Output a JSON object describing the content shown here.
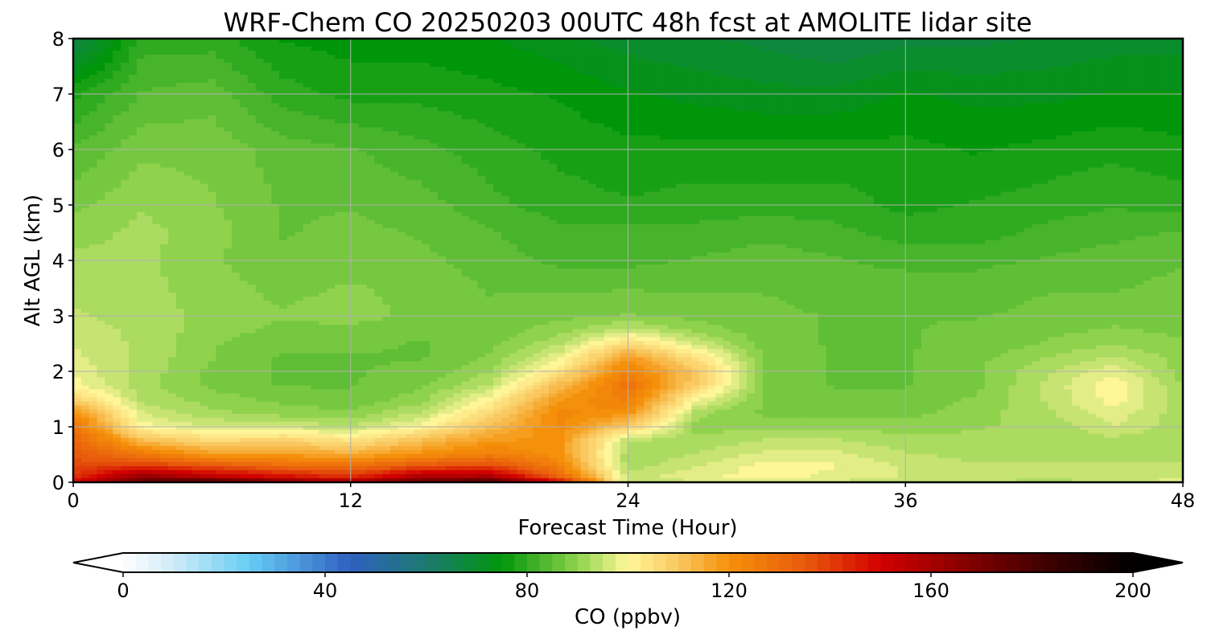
{
  "chart_data": {
    "type": "heatmap",
    "title": "WRF-Chem CO  20250203 00UTC 48h fcst at AMOLITE lidar site",
    "xlabel": "Forecast Time (Hour)",
    "ylabel": "Alt AGL (km)",
    "xlim": [
      0,
      48
    ],
    "ylim": [
      0,
      8
    ],
    "xticks": [
      "0",
      "12",
      "24",
      "36",
      "48"
    ],
    "yticks": [
      "0",
      "1",
      "2",
      "3",
      "4",
      "5",
      "6",
      "7",
      "8"
    ],
    "grid": true,
    "colorbar": {
      "label": "CO  (ppbv)",
      "range": [
        0,
        200
      ],
      "extend": "both",
      "ticks": [
        "0",
        "40",
        "80",
        "120",
        "160",
        "200"
      ],
      "stops": [
        {
          "value": 0,
          "color": "#ffffff"
        },
        {
          "value": 10,
          "color": "#cfeaf8"
        },
        {
          "value": 25,
          "color": "#66ccf5"
        },
        {
          "value": 45,
          "color": "#3060c0"
        },
        {
          "value": 60,
          "color": "#1c7a70"
        },
        {
          "value": 75,
          "color": "#00960a"
        },
        {
          "value": 90,
          "color": "#8fd24c"
        },
        {
          "value": 100,
          "color": "#fff69a"
        },
        {
          "value": 110,
          "color": "#f9c860"
        },
        {
          "value": 120,
          "color": "#f5900a"
        },
        {
          "value": 135,
          "color": "#e85a0c"
        },
        {
          "value": 150,
          "color": "#d20000"
        },
        {
          "value": 165,
          "color": "#8e0000"
        },
        {
          "value": 180,
          "color": "#4a0000"
        },
        {
          "value": 200,
          "color": "#000000"
        }
      ]
    },
    "hours": [
      0,
      3,
      6,
      9,
      12,
      15,
      18,
      21,
      24,
      27,
      30,
      33,
      36,
      39,
      42,
      45,
      48
    ],
    "altitudes_km": [
      0,
      0.1,
      0.3,
      0.5,
      0.75,
      1,
      1.25,
      1.5,
      1.75,
      2,
      2.25,
      2.5,
      2.75,
      3,
      3.5,
      4,
      4.5,
      5,
      6,
      7,
      8
    ],
    "values": [
      [
        150,
        175,
        182,
        168,
        160,
        175,
        180,
        150,
        94,
        96,
        97,
        96,
        94,
        94,
        93,
        94,
        98
      ],
      [
        140,
        165,
        155,
        148,
        142,
        158,
        160,
        132,
        95,
        98,
        100,
        98,
        96,
        95,
        94,
        95,
        96
      ],
      [
        138,
        140,
        135,
        130,
        128,
        135,
        138,
        124,
        92,
        96,
        100,
        99,
        96,
        94,
        94,
        94,
        94
      ],
      [
        135,
        126,
        118,
        118,
        115,
        120,
        125,
        120,
        92,
        94,
        97,
        97,
        94,
        93,
        93,
        93,
        93
      ],
      [
        132,
        112,
        106,
        108,
        104,
        112,
        118,
        120,
        94,
        92,
        94,
        94,
        92,
        92,
        92,
        93,
        92
      ],
      [
        128,
        100,
        96,
        96,
        94,
        100,
        112,
        122,
        108,
        90,
        91,
        91,
        90,
        91,
        92,
        96,
        92
      ],
      [
        120,
        96,
        92,
        90,
        89,
        94,
        106,
        122,
        120,
        92,
        88,
        88,
        88,
        90,
        93,
        98,
        92
      ],
      [
        108,
        93,
        90,
        88,
        87,
        90,
        100,
        118,
        125,
        100,
        88,
        87,
        87,
        89,
        94,
        100,
        92
      ],
      [
        100,
        92,
        88,
        86,
        86,
        88,
        94,
        112,
        128,
        108,
        88,
        86,
        86,
        88,
        94,
        101,
        91
      ],
      [
        98,
        93,
        88,
        86,
        86,
        87,
        91,
        104,
        124,
        110,
        88,
        86,
        86,
        88,
        93,
        98,
        90
      ],
      [
        97,
        93,
        89,
        86,
        86,
        86,
        89,
        98,
        118,
        104,
        88,
        86,
        86,
        88,
        91,
        94,
        90
      ],
      [
        96,
        93,
        89,
        87,
        87,
        86,
        88,
        93,
        106,
        96,
        87,
        86,
        86,
        87,
        89,
        91,
        89
      ],
      [
        95,
        93,
        90,
        88,
        88,
        87,
        87,
        90,
        95,
        90,
        87,
        86,
        86,
        87,
        88,
        89,
        88
      ],
      [
        94,
        93,
        90,
        89,
        90,
        88,
        87,
        88,
        89,
        88,
        87,
        86,
        86,
        86,
        87,
        88,
        88
      ],
      [
        93,
        92,
        90,
        88,
        89,
        88,
        86,
        86,
        86,
        86,
        86,
        85,
        85,
        85,
        86,
        86,
        87
      ],
      [
        92,
        92,
        89,
        87,
        88,
        87,
        85,
        83,
        83,
        84,
        85,
        84,
        83,
        83,
        84,
        85,
        86
      ],
      [
        90,
        92,
        90,
        86,
        87,
        86,
        84,
        82,
        82,
        82,
        83,
        82,
        80,
        80,
        82,
        83,
        84
      ],
      [
        88,
        91,
        89,
        86,
        86,
        85,
        82,
        80,
        79,
        80,
        80,
        80,
        78,
        79,
        80,
        81,
        80
      ],
      [
        84,
        88,
        88,
        85,
        84,
        82,
        80,
        78,
        77,
        77,
        77,
        77,
        77,
        76,
        77,
        78,
        77
      ],
      [
        78,
        84,
        85,
        80,
        78,
        78,
        77,
        76,
        74,
        73,
        72,
        72,
        74,
        73,
        73,
        74,
        74
      ],
      [
        65,
        80,
        80,
        76,
        75,
        75,
        74,
        72,
        70,
        69,
        68,
        66,
        68,
        68,
        69,
        70,
        70
      ]
    ]
  }
}
